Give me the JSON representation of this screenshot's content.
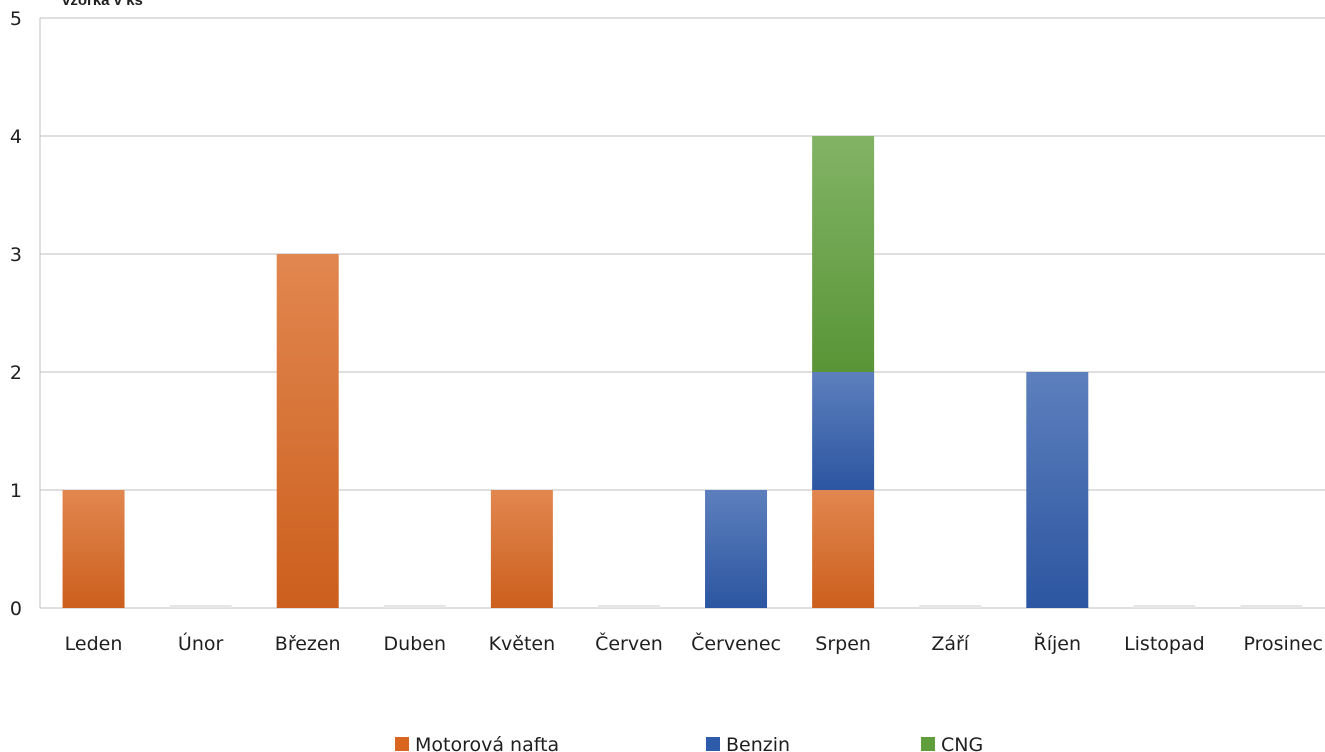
{
  "chart_data": {
    "type": "bar",
    "stacked": true,
    "ylabel": "vzorka v ks",
    "ylim": [
      0,
      5
    ],
    "yticks": [
      0,
      1,
      2,
      3,
      4,
      5
    ],
    "grid": true,
    "legend_position": "bottom",
    "categories": [
      "Leden",
      "Únor",
      "Březen",
      "Duben",
      "Květen",
      "Červen",
      "Červenec",
      "Srpen",
      "Září",
      "Říjen",
      "Listopad",
      "Prosinec"
    ],
    "series": [
      {
        "name": "Motorová nafta",
        "color": "#d9651f",
        "values": [
          1,
          0,
          3,
          0,
          1,
          0,
          0,
          1,
          0,
          0,
          0,
          0
        ]
      },
      {
        "name": "Benzin",
        "color": "#2f5bab",
        "values": [
          0,
          0,
          0,
          0,
          0,
          0,
          1,
          1,
          0,
          2,
          0,
          0
        ]
      },
      {
        "name": "CNG",
        "color": "#5f9e3a",
        "values": [
          0,
          0,
          0,
          0,
          0,
          0,
          0,
          2,
          0,
          0,
          0,
          0
        ]
      }
    ]
  }
}
